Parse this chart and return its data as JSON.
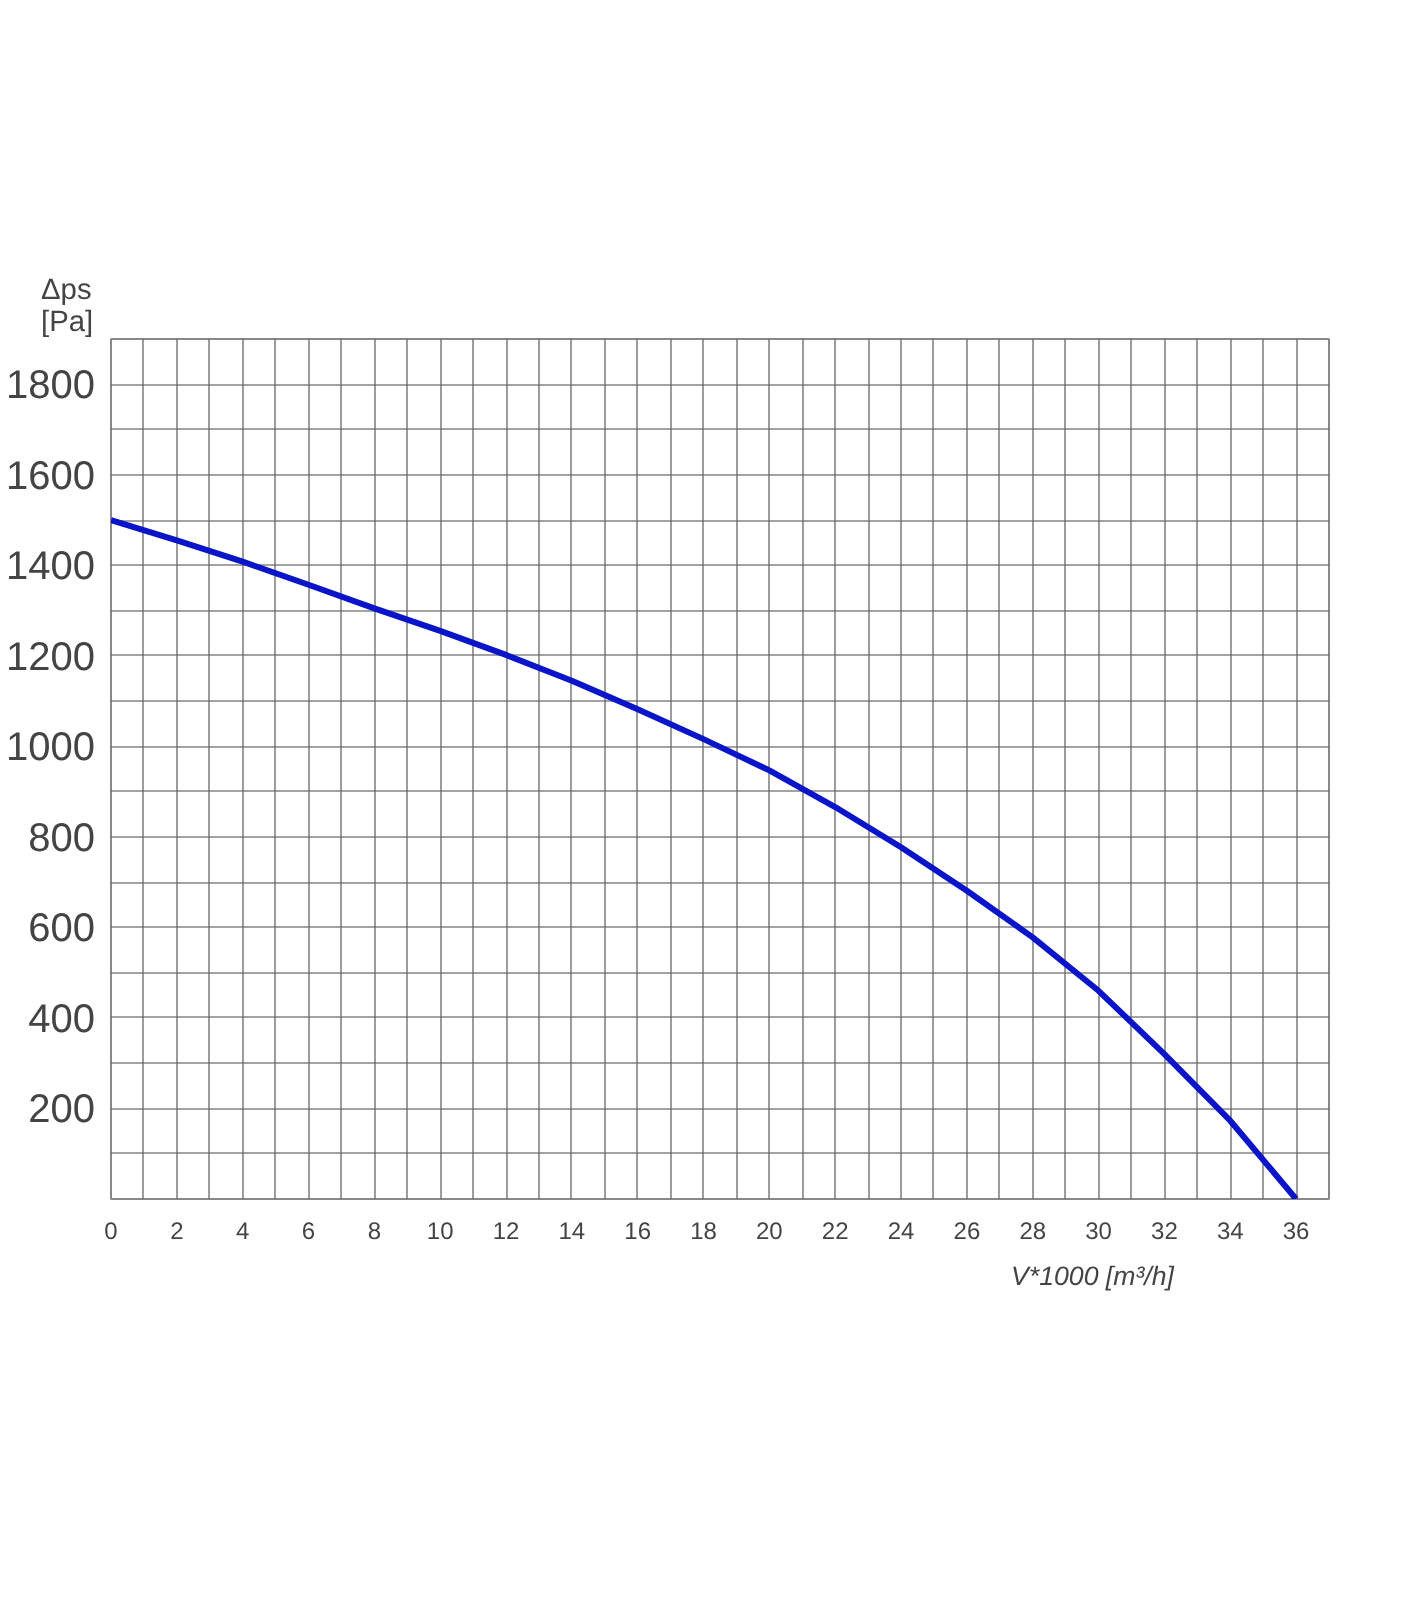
{
  "chart_data": {
    "type": "line",
    "xlabel": "V*1000 [m³/h]",
    "ylabel": "Δps\n[Pa]",
    "x": [
      0,
      2,
      4,
      6,
      8,
      10,
      12,
      14,
      16,
      18,
      20,
      22,
      24,
      26,
      28,
      30,
      32,
      34,
      36
    ],
    "series": [
      {
        "color": "#0a14c8",
        "values": [
          1500,
          1455,
          1408,
          1357,
          1305,
          1255,
          1202,
          1145,
          1082,
          1016,
          947,
          866,
          777,
          681,
          578,
          460,
          320,
          173,
          0
        ]
      }
    ],
    "xlim": [
      0,
      37
    ],
    "ylim": [
      0,
      1900
    ],
    "xticks": [
      0,
      {
        "value": 1,
        "label": null
      },
      2,
      {
        "value": 3,
        "label": null
      },
      4,
      {
        "value": 5,
        "label": null
      },
      6,
      {
        "value": 7,
        "label": null
      },
      8,
      {
        "value": 9,
        "label": null
      },
      10,
      {
        "value": 11,
        "label": null
      },
      12,
      {
        "value": 13,
        "label": null
      },
      14,
      {
        "value": 15,
        "label": null
      },
      16,
      {
        "value": 17,
        "label": null
      },
      18,
      {
        "value": 19,
        "label": null
      },
      20,
      {
        "value": 21,
        "label": null
      },
      22,
      {
        "value": 23,
        "label": null
      },
      24,
      {
        "value": 25,
        "label": null
      },
      26,
      {
        "value": 27,
        "label": null
      },
      28,
      {
        "value": 29,
        "label": null
      },
      30,
      {
        "value": 31,
        "label": null
      },
      32,
      {
        "value": 33,
        "label": null
      },
      34,
      {
        "value": 35,
        "label": null
      },
      36
    ],
    "yticks": [
      {
        "value": 0,
        "label": null
      },
      {
        "value": 100,
        "label": null
      },
      200,
      {
        "value": 300,
        "label": null
      },
      400,
      {
        "value": 500,
        "label": null
      },
      600,
      {
        "value": 700,
        "label": null
      },
      800,
      {
        "value": 900,
        "label": null
      },
      1000,
      {
        "value": 1100,
        "label": null
      },
      1200,
      {
        "value": 1300,
        "label": null
      },
      1400,
      {
        "value": 1500,
        "label": null
      },
      1600,
      {
        "value": 1700,
        "label": null
      },
      1800
    ],
    "grid": true,
    "marker": "none",
    "line_style": "solid"
  }
}
